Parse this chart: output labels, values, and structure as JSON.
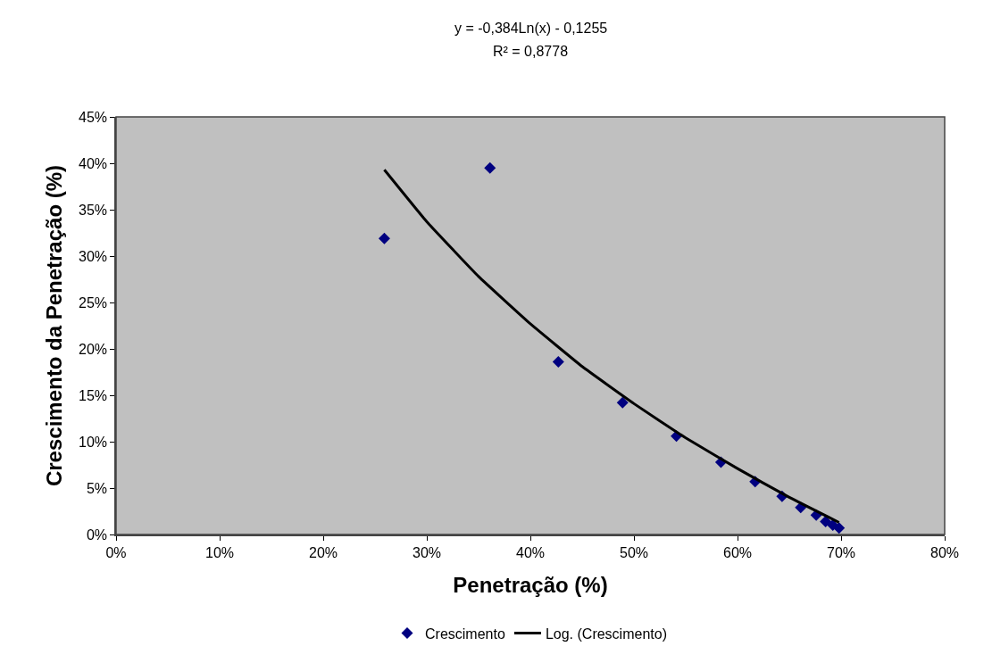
{
  "chart_data": {
    "type": "scatter",
    "xlabel": "Penetração (%)",
    "ylabel": "Crescimento da Penetração (%)",
    "annotations": [
      "y = -0,384Ln(x) - 0,1255",
      "R² = 0,8778"
    ],
    "series": [
      {
        "name": "Crescimento",
        "color": "#000080",
        "marker": "diamond",
        "x": [
          25.9,
          36.1,
          42.7,
          48.9,
          54.1,
          58.4,
          61.7,
          64.3,
          66.1,
          67.6,
          68.5,
          69.2,
          69.8
        ],
        "values": [
          31.9,
          39.5,
          18.6,
          14.2,
          10.6,
          7.8,
          5.7,
          4.1,
          2.9,
          2.1,
          1.4,
          1.0,
          0.7
        ]
      },
      {
        "name": "Log. (Crescimento)",
        "type": "line",
        "color": "#000000",
        "marker": "none",
        "line_style": "solid",
        "x": [
          25.9,
          30,
          35,
          40,
          45,
          50,
          55,
          60,
          65,
          69.8
        ],
        "values": [
          39.3,
          33.7,
          27.8,
          22.7,
          18.1,
          14.1,
          10.4,
          7.1,
          4.0,
          1.3
        ]
      }
    ],
    "xlim": [
      0,
      80
    ],
    "xticks": [
      {
        "value": 0,
        "label": "0%"
      },
      {
        "value": 10,
        "label": "10%"
      },
      {
        "value": 20,
        "label": "20%"
      },
      {
        "value": 30,
        "label": "30%"
      },
      {
        "value": 40,
        "label": "40%"
      },
      {
        "value": 50,
        "label": "50%"
      },
      {
        "value": 60,
        "label": "60%"
      },
      {
        "value": 70,
        "label": "70%"
      },
      {
        "value": 80,
        "label": "80%"
      }
    ],
    "ylim": [
      0,
      45
    ],
    "yticks": [
      {
        "value": 0,
        "label": "0%"
      },
      {
        "value": 5,
        "label": "5%"
      },
      {
        "value": 10,
        "label": "10%"
      },
      {
        "value": 15,
        "label": "15%"
      },
      {
        "value": 20,
        "label": "20%"
      },
      {
        "value": 25,
        "label": "25%"
      },
      {
        "value": 30,
        "label": "30%"
      },
      {
        "value": 35,
        "label": "35%"
      },
      {
        "value": 40,
        "label": "40%"
      },
      {
        "value": 45,
        "label": "45%"
      }
    ],
    "grid": false,
    "legend": "bottom"
  }
}
